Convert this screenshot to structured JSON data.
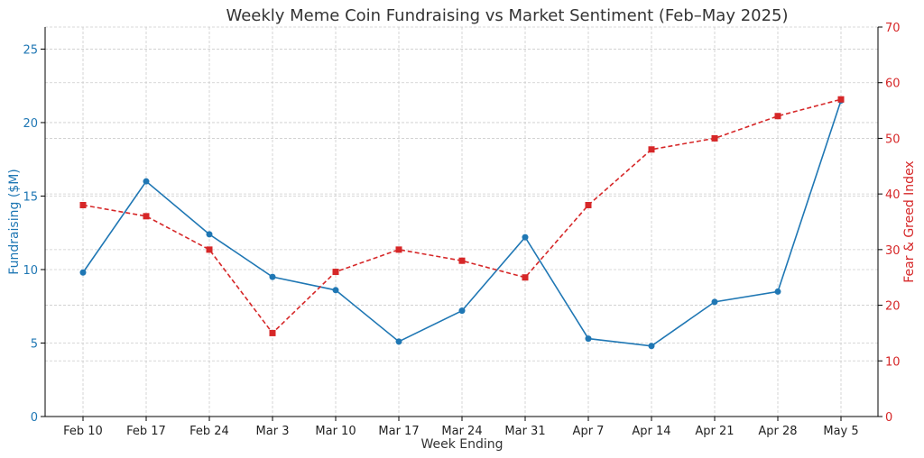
{
  "chart_data": {
    "type": "line",
    "title": "Weekly Meme Coin Fundraising vs Market Sentiment (Feb–May 2025)",
    "xlabel": "Week Ending",
    "categories": [
      "Feb 10",
      "Feb 17",
      "Feb 24",
      "Mar 3",
      "Mar 10",
      "Mar 17",
      "Mar 24",
      "Mar 31",
      "Apr 7",
      "Apr 14",
      "Apr 21",
      "Apr 28",
      "May 5"
    ],
    "y_left": {
      "label": "Fundraising ($M)",
      "lim": [
        0,
        26.5
      ],
      "ticks": [
        0,
        5,
        10,
        15,
        20,
        25
      ],
      "color": "#1f77b4"
    },
    "y_right": {
      "label": "Fear & Greed Index",
      "lim": [
        0,
        70
      ],
      "ticks": [
        0,
        10,
        20,
        30,
        40,
        50,
        60,
        70
      ],
      "color": "#d62728"
    },
    "series": [
      {
        "axis": "left",
        "color": "#1f77b4",
        "style": "solid",
        "marker": "circle",
        "values": [
          9.8,
          16.0,
          12.4,
          9.5,
          8.6,
          5.1,
          7.2,
          12.2,
          5.3,
          4.8,
          7.8,
          8.5,
          21.5
        ]
      },
      {
        "axis": "right",
        "color": "#d62728",
        "style": "dashed",
        "marker": "square",
        "values": [
          38,
          36,
          30,
          15,
          26,
          30,
          28,
          25,
          38,
          48,
          50,
          54,
          57
        ]
      }
    ],
    "grid": true
  }
}
